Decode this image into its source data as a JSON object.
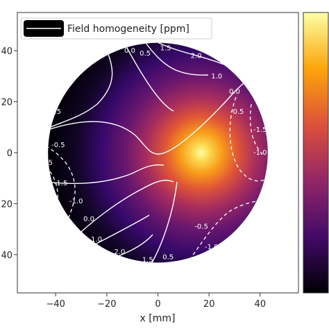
{
  "chart_data": {
    "type": "heatmap",
    "title": "",
    "xlabel": "x [mm]",
    "ylabel": "",
    "xlim": [
      -55,
      55
    ],
    "ylim": [
      -55,
      55
    ],
    "x_ticks": [
      -40,
      -20,
      0,
      20,
      40
    ],
    "y_ticks": [
      40,
      20,
      0,
      -20,
      -40
    ],
    "x_tick_labels": [
      "−40",
      "−20",
      "0",
      "20",
      "40"
    ],
    "y_tick_labels": [
      "40",
      "20",
      "0",
      "20",
      "40"
    ],
    "disk_radius": 43,
    "colormap": "inferno",
    "colormap_stops": [
      "#000004",
      "#420a68",
      "#932667",
      "#dd513a",
      "#fca50a",
      "#fcffa4"
    ],
    "hot_spot": {
      "x": 17,
      "y": 0,
      "value": 1.0
    },
    "legend": {
      "label": "Field homogeneity  [ppm]",
      "placement": "top-left",
      "line_color": "#ffffff",
      "box_color": "#000000"
    },
    "colorbar": {
      "placement": "right",
      "tick_labels": []
    },
    "contour_labels": [
      {
        "text": "-0.5",
        "x": -31,
        "y": 39
      },
      {
        "text": "0.0",
        "x": -11,
        "y": 40
      },
      {
        "text": "0.5",
        "x": -5,
        "y": 39
      },
      {
        "text": "1.5",
        "x": 3,
        "y": 41
      },
      {
        "text": "2.0",
        "x": 15,
        "y": 38
      },
      {
        "text": "1.0",
        "x": 23,
        "y": 30
      },
      {
        "text": "0.0",
        "x": 30,
        "y": 24
      },
      {
        "text": "0.5",
        "x": -40,
        "y": 16
      },
      {
        "text": "-0.5",
        "x": 31,
        "y": 16
      },
      {
        "text": "-1.5",
        "x": 40,
        "y": 9
      },
      {
        "text": "-0.5",
        "x": -39,
        "y": 3
      },
      {
        "text": "-1.0",
        "x": 40,
        "y": 0
      },
      {
        "text": "5",
        "x": -42,
        "y": -4
      },
      {
        "text": "-1.5",
        "x": -38,
        "y": -12
      },
      {
        "text": "-1.0",
        "x": -32,
        "y": -19
      },
      {
        "text": "0.0",
        "x": -27,
        "y": -26
      },
      {
        "text": "1.0",
        "x": -24,
        "y": -34
      },
      {
        "text": "2.0",
        "x": -15,
        "y": -39
      },
      {
        "text": "1.5",
        "x": -4,
        "y": -42
      },
      {
        "text": "0.5",
        "x": 4,
        "y": -41
      },
      {
        "text": "-0.5",
        "x": 17,
        "y": -29
      },
      {
        "text": "-1.0",
        "x": 21,
        "y": -37
      }
    ]
  }
}
